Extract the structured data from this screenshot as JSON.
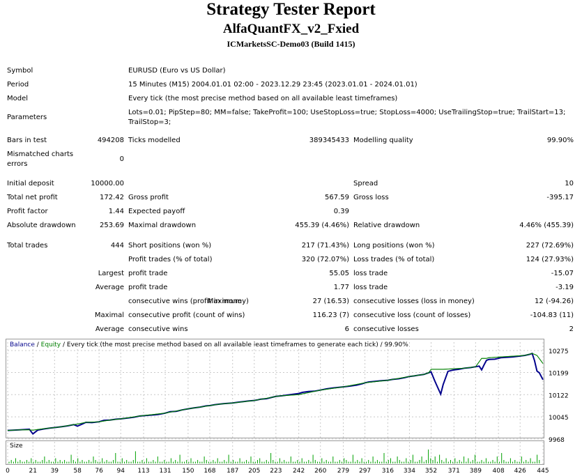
{
  "report": {
    "title": "Strategy Tester Report",
    "ea_name": "AlfaQuantFX_v2_Fxied",
    "server": "ICMarketsSC-Demo03 (Build 1415)"
  },
  "info": {
    "symbol_label": "Symbol",
    "symbol_value": "EURUSD (Euro vs US Dollar)",
    "period_label": "Period",
    "period_value": "15 Minutes (M15) 2004.01.01 02:00 - 2023.12.29 23:45 (2023.01.01 - 2024.01.01)",
    "model_label": "Model",
    "model_value": "Every tick (the most precise method based on all available least timeframes)",
    "parameters_label": "Parameters",
    "parameters_line1": "Lots=0.01; PipStep=80; MM=false; TakeProfit=100; UseStopLoss=true; StopLoss=4000; UseTrailingStop=true; TrailStart=13;",
    "parameters_line2": "TrailStop=3;"
  },
  "stats": {
    "bars_label": "Bars in test",
    "bars_value": "494208",
    "ticks_label": "Ticks modelled",
    "ticks_value": "389345433",
    "quality_label": "Modelling quality",
    "quality_value": "99.90%",
    "mismatch_label1": "Mismatched charts",
    "mismatch_label2": "errors",
    "mismatch_value": "0",
    "deposit_label": "Initial deposit",
    "deposit_value": "10000.00",
    "spread_label": "Spread",
    "spread_value": "10",
    "netprofit_label": "Total net profit",
    "netprofit_value": "172.42",
    "grossprofit_label": "Gross profit",
    "grossprofit_value": "567.59",
    "grossloss_label": "Gross loss",
    "grossloss_value": "-395.17",
    "pf_label": "Profit factor",
    "pf_value": "1.44",
    "expected_label": "Expected payoff",
    "expected_value": "0.39",
    "absdd_label": "Absolute drawdown",
    "absdd_value": "253.69",
    "maxdd_label": "Maximal drawdown",
    "maxdd_value": "455.39 (4.46%)",
    "reldd_label": "Relative drawdown",
    "reldd_value": "4.46% (455.39)",
    "trades_label": "Total trades",
    "trades_value": "444",
    "short_label": "Short positions (won %)",
    "short_value": "217 (71.43%)",
    "long_label": "Long positions (won %)",
    "long_value": "227 (72.69%)",
    "ptrades_label": "Profit trades (% of total)",
    "ptrades_value": "320 (72.07%)",
    "ltrades_label": "Loss trades (% of total)",
    "ltrades_value": "124 (27.93%)",
    "largest_label": "Largest",
    "largest_profit_label": "profit trade",
    "largest_profit_value": "55.05",
    "largest_loss_label": "loss trade",
    "largest_loss_value": "-15.07",
    "average_label": "Average",
    "average_profit_label": "profit trade",
    "average_profit_value": "1.77",
    "average_loss_label": "loss trade",
    "average_loss_value": "-3.19",
    "maximum_label": "Maximum",
    "max_wins_label": "consecutive wins (profit in money)",
    "max_wins_value": "27 (16.53)",
    "max_losses_label": "consecutive losses (loss in money)",
    "max_losses_value": "12 (-94.26)",
    "maximal_label": "Maximal",
    "maximal_profit_label": "consecutive profit (count of wins)",
    "maximal_profit_value": "116.23 (7)",
    "maximal_loss_label": "consecutive loss (count of losses)",
    "maximal_loss_value": "-104.83 (11)",
    "avg2_label": "Average",
    "avg_wins_label": "consecutive wins",
    "avg_wins_value": "6",
    "avg_losses_label": "consecutive losses",
    "avg_losses_value": "2"
  },
  "chart_legend": {
    "balance": "Balance",
    "sep1": " / ",
    "equity": "Equity",
    "rest": " / Every tick (the most precise method based on all available least timeframes to generate each tick) / 99.90%"
  },
  "size_label": "Size",
  "colors": {
    "balance": "#00008b",
    "equity": "#008000",
    "volume": "#00a000",
    "grid": "#c8c8c8"
  },
  "chart_data": {
    "type": "line",
    "title": "",
    "y_ticks": [
      "10275",
      "10199",
      "10122",
      "10045",
      "9968"
    ],
    "x_ticks": [
      "0",
      "21",
      "39",
      "58",
      "76",
      "94",
      "113",
      "131",
      "150",
      "168",
      "187",
      "205",
      "223",
      "242",
      "260",
      "279",
      "297",
      "316",
      "334",
      "352",
      "371",
      "389",
      "408",
      "426",
      "445"
    ],
    "ylim": [
      9968,
      10275
    ],
    "xlim": [
      0,
      445
    ],
    "series": [
      {
        "name": "Balance",
        "x": [
          0,
          10,
          18,
          21,
          25,
          30,
          35,
          39,
          45,
          50,
          55,
          58,
          62,
          65,
          70,
          76,
          80,
          85,
          90,
          94,
          100,
          105,
          110,
          113,
          118,
          122,
          125,
          131,
          135,
          140,
          145,
          150,
          155,
          160,
          165,
          168,
          172,
          176,
          180,
          187,
          192,
          196,
          200,
          205,
          208,
          210,
          212,
          215,
          220,
          223,
          228,
          235,
          242,
          245,
          250,
          255,
          260,
          265,
          270,
          279,
          285,
          290,
          295,
          297,
          300,
          305,
          310,
          316,
          320,
          325,
          330,
          334,
          338,
          342,
          346,
          348,
          350,
          352,
          355,
          358,
          360,
          362,
          366,
          371,
          375,
          380,
          385,
          389,
          392,
          394,
          396,
          398,
          400,
          405,
          410,
          420,
          430,
          434,
          436,
          438,
          440,
          442,
          445
        ],
        "y": [
          9998,
          10000,
          10002,
          9986,
          9999,
          10003,
          10006,
          10008,
          10011,
          10014,
          10018,
          10013,
          10020,
          10026,
          10025,
          10028,
          10033,
          10034,
          10037,
          10038,
          10041,
          10044,
          10048,
          10049,
          10051,
          10052,
          10053,
          10058,
          10063,
          10064,
          10069,
          10073,
          10076,
          10079,
          10083,
          10084,
          10087,
          10089,
          10091,
          10093,
          10096,
          10098,
          10100,
          10102,
          10104,
          10106,
          10107,
          10108,
          10113,
          10116,
          10118,
          10122,
          10126,
          10130,
          10133,
          10134,
          10138,
          10142,
          10145,
          10149,
          10152,
          10155,
          10160,
          10163,
          10166,
          10168,
          10170,
          10172,
          10175,
          10177,
          10181,
          10185,
          10187,
          10190,
          10192,
          10195,
          10198,
          10201,
          10170,
          10142,
          10124,
          10157,
          10203,
          10208,
          10210,
          10214,
          10216,
          10219,
          10221,
          10208,
          10225,
          10241,
          10244,
          10245,
          10250,
          10253,
          10258,
          10262,
          10265,
          10240,
          10204,
          10198,
          10174
        ]
      },
      {
        "name": "Equity",
        "x": [
          0,
          10,
          18,
          21,
          25,
          30,
          39,
          45,
          55,
          58,
          65,
          76,
          85,
          94,
          110,
          131,
          150,
          168,
          176,
          187,
          205,
          220,
          223,
          228,
          242,
          260,
          279,
          297,
          316,
          334,
          346,
          350,
          352,
          360,
          362,
          371,
          380,
          389,
          394,
          396,
          398,
          400,
          410,
          430,
          436,
          438,
          440,
          445
        ],
        "y": [
          9998,
          10000,
          10000,
          9999,
          10001,
          10004,
          10008,
          10011,
          10018,
          10020,
          10026,
          10028,
          10034,
          10038,
          10048,
          10058,
          10073,
          10084,
          10089,
          10093,
          10102,
          10113,
          10116,
          10118,
          10122,
          10138,
          10149,
          10163,
          10172,
          10185,
          10192,
          10198,
          10210,
          10210,
          10210,
          10212,
          10214,
          10219,
          10248,
          10248,
          10248,
          10250,
          10253,
          10258,
          10265,
          10262,
          10258,
          10230
        ]
      }
    ],
    "volume": [
      1,
      2,
      1,
      3,
      1,
      2,
      1,
      1,
      2,
      1,
      3,
      1,
      2,
      1,
      1,
      2,
      4,
      1,
      2,
      1,
      1,
      3,
      1,
      2,
      1,
      2,
      1,
      1,
      5,
      2,
      1,
      3,
      1,
      2,
      1,
      1,
      2,
      1,
      4,
      2,
      1,
      1,
      3,
      1,
      2,
      1,
      1,
      2,
      6,
      1,
      1,
      3,
      1,
      2,
      1,
      1,
      2,
      7,
      1,
      1,
      2,
      1,
      3,
      1,
      1,
      2,
      1,
      4,
      1,
      1,
      2,
      1,
      1,
      3,
      1,
      2,
      1,
      5,
      1,
      1,
      2,
      1,
      3,
      1,
      1,
      2,
      1,
      1,
      4,
      2,
      1,
      1,
      2,
      1,
      3,
      1,
      1,
      2,
      1,
      5,
      1,
      2,
      1,
      1,
      3,
      1,
      1,
      2,
      1,
      4,
      1,
      1,
      2,
      3,
      1,
      1,
      2,
      1,
      6,
      2,
      1,
      1,
      3,
      1,
      2,
      1,
      1,
      4,
      1,
      1,
      2,
      1,
      3,
      1,
      1,
      2,
      1,
      5,
      2,
      1,
      1,
      3,
      1,
      2,
      1,
      1,
      4,
      1,
      1,
      2,
      1,
      3,
      2,
      1,
      1,
      5,
      1,
      2,
      1,
      3,
      1,
      1,
      2,
      1,
      4,
      1,
      2,
      1,
      1,
      6,
      1,
      2,
      3,
      1,
      1,
      4,
      2,
      1,
      1,
      3,
      1,
      2,
      5,
      1,
      1,
      2,
      4,
      1,
      2,
      8,
      3,
      2,
      4,
      1,
      5,
      2,
      1,
      3,
      1,
      2,
      1,
      3,
      1,
      2,
      1,
      4,
      1,
      3,
      1,
      2,
      5,
      1,
      1,
      2,
      1,
      3,
      1,
      1,
      2,
      1,
      4,
      1,
      6,
      2,
      1,
      1,
      3,
      1,
      2,
      1,
      1,
      4,
      1,
      2,
      1,
      3,
      1,
      1,
      5,
      2
    ]
  }
}
